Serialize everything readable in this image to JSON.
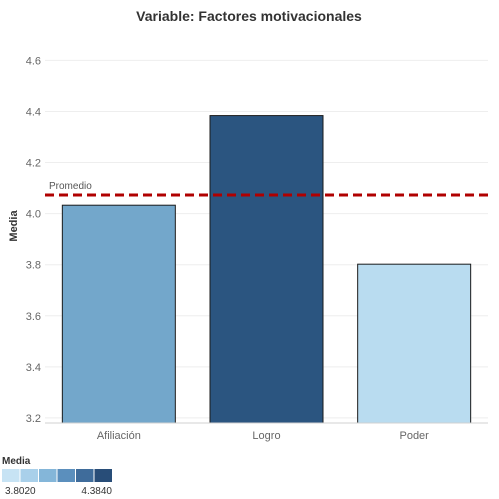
{
  "chart_data": {
    "type": "bar",
    "title": "Variable: Factores motivacionales",
    "ylabel": "Media",
    "xlabel": "",
    "categories": [
      "Afiliación",
      "Logro",
      "Poder"
    ],
    "values": [
      4.033,
      4.384,
      3.802
    ],
    "bar_colors": [
      "#73a7cb",
      "#2b5580",
      "#b9dcf0"
    ],
    "ylim": [
      3.18,
      4.68
    ],
    "yticks": [
      "3.2",
      "3.4",
      "3.6",
      "3.8",
      "4.0",
      "4.2",
      "4.4",
      "4.6"
    ],
    "ytick_values": [
      3.2,
      3.4,
      3.6,
      3.8,
      4.0,
      4.2,
      4.4,
      4.6
    ],
    "grid": true,
    "reference_line": {
      "label": "Promedio",
      "value": 4.073,
      "color": "#b00000",
      "style": "dashed"
    },
    "color_legend": {
      "title": "Media",
      "min_label": "3.8020",
      "max_label": "4.3840",
      "colors": [
        "#c7e3f4",
        "#a9d0ea",
        "#84b6d9",
        "#5b8fbd",
        "#3f6c9b",
        "#284d78"
      ]
    }
  }
}
